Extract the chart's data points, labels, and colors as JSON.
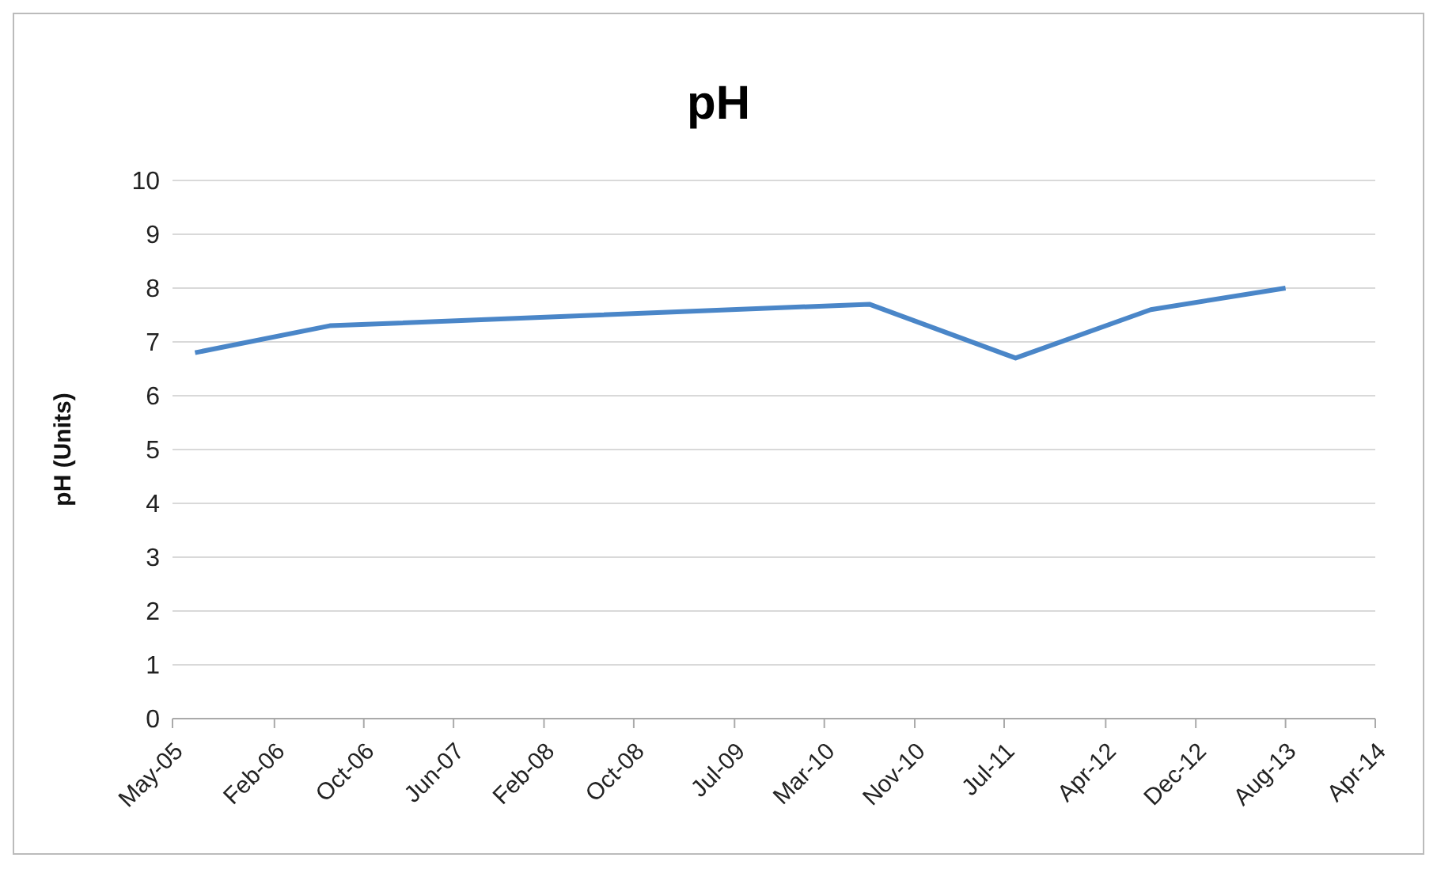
{
  "chart_data": {
    "type": "line",
    "title": "pH",
    "ylabel": "pH (Units)",
    "x": [
      "2005-07",
      "2006-07",
      "2010-07",
      "2011-08",
      "2012-08",
      "2013-08"
    ],
    "series": [
      {
        "color": "#4a86c8",
        "values": [
          6.8,
          7.3,
          7.7,
          6.7,
          7.6,
          8.0
        ]
      }
    ],
    "xlim": [
      "2005-05",
      "2014-04"
    ],
    "xticks": [
      {
        "value": "2005-05",
        "label": "May-05"
      },
      {
        "value": "2006-02",
        "label": "Feb-06"
      },
      {
        "value": "2006-10",
        "label": "Oct-06"
      },
      {
        "value": "2007-06",
        "label": "Jun-07"
      },
      {
        "value": "2008-02",
        "label": "Feb-08"
      },
      {
        "value": "2008-10",
        "label": "Oct-08"
      },
      {
        "value": "2009-07",
        "label": "Jul-09"
      },
      {
        "value": "2010-03",
        "label": "Mar-10"
      },
      {
        "value": "2010-11",
        "label": "Nov-10"
      },
      {
        "value": "2011-07",
        "label": "Jul-11"
      },
      {
        "value": "2012-04",
        "label": "Apr-12"
      },
      {
        "value": "2012-12",
        "label": "Dec-12"
      },
      {
        "value": "2013-08",
        "label": "Aug-13"
      },
      {
        "value": "2014-04",
        "label": "Apr-14"
      }
    ],
    "ylim": [
      0,
      10
    ],
    "yticks": [
      0,
      1,
      2,
      3,
      4,
      5,
      6,
      7,
      8,
      9,
      10
    ],
    "grid": "y",
    "legend": false,
    "marker": "none",
    "line_style": "solid"
  }
}
